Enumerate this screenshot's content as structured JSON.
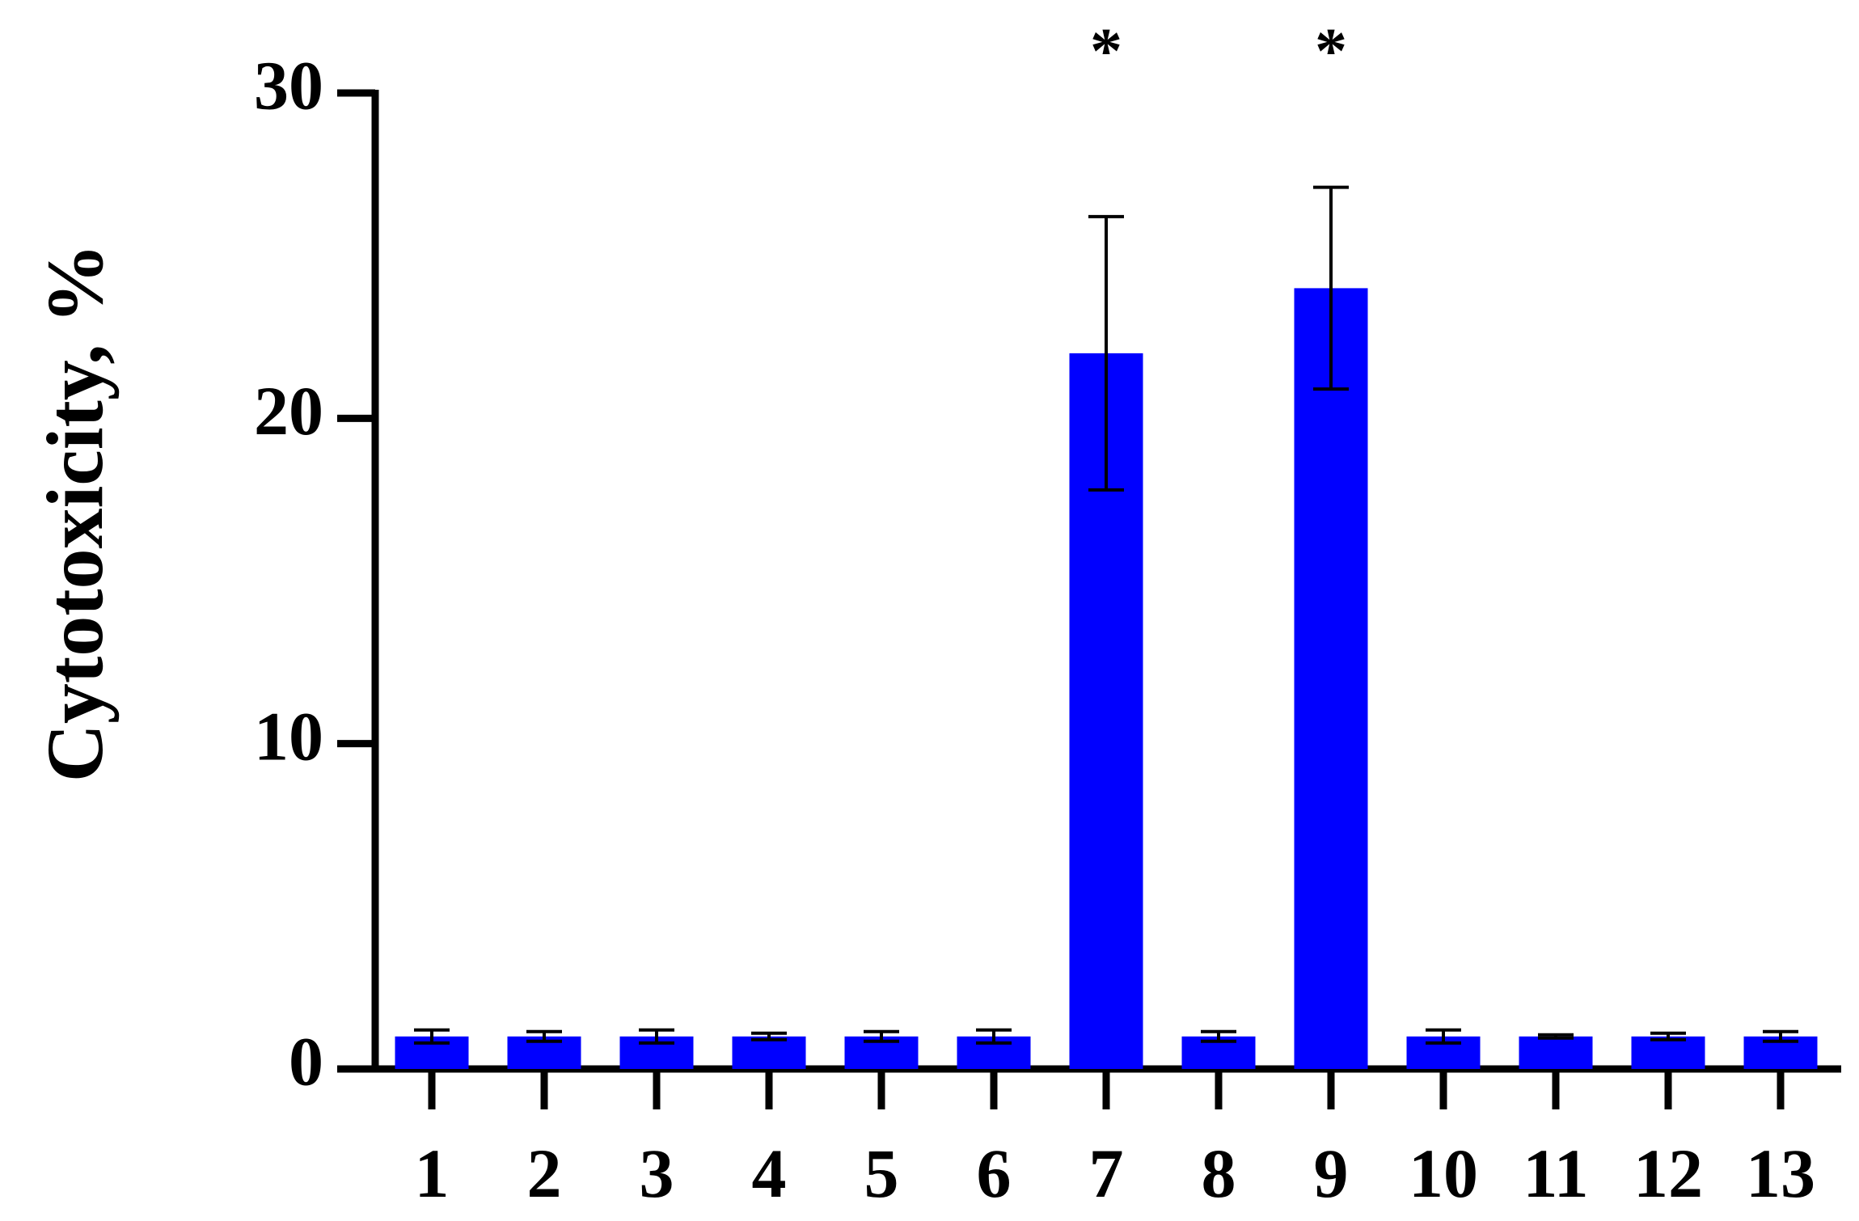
{
  "chart_data": {
    "type": "bar",
    "y_label": "Cytotoxicity, %",
    "categories": [
      "1",
      "2",
      "3",
      "4",
      "5",
      "6",
      "7",
      "8",
      "9",
      "10",
      "11",
      "12",
      "13"
    ],
    "values": [
      1,
      1,
      1,
      1,
      1,
      1,
      22,
      1,
      24,
      1,
      1,
      1,
      1
    ],
    "errors": [
      0.2,
      0.15,
      0.2,
      0.1,
      0.15,
      0.2,
      4.2,
      0.15,
      3.1,
      0.2,
      0.05,
      0.1,
      0.15
    ],
    "annotations": [
      null,
      null,
      null,
      null,
      null,
      null,
      "*",
      null,
      "*",
      null,
      null,
      null,
      null
    ],
    "color": "#0000ff",
    "ylim": [
      0,
      30
    ],
    "yticks": [
      0,
      10,
      20,
      30
    ],
    "grid": false
  }
}
